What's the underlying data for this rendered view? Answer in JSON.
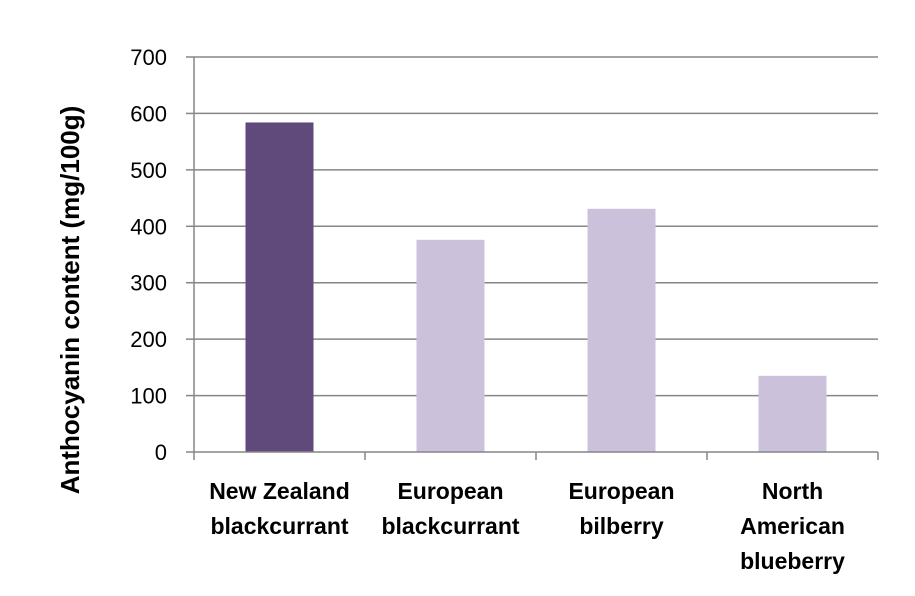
{
  "chart_data": {
    "type": "bar",
    "title": "",
    "xlabel": "",
    "ylabel": "Anthocyanin content (mg/100g)",
    "ylim": [
      0,
      700
    ],
    "yticks": [
      0,
      100,
      200,
      300,
      400,
      500,
      600,
      700
    ],
    "grid": true,
    "legend": "none",
    "categories": [
      [
        "New Zealand",
        "blackcurrant"
      ],
      [
        "European",
        "blackcurrant"
      ],
      [
        "European",
        "bilberry"
      ],
      [
        "North",
        "American",
        "blueberry"
      ]
    ],
    "values": [
      584,
      376,
      431,
      135
    ],
    "colors": [
      "#604a7b",
      "#ccc1da",
      "#ccc1da",
      "#ccc1da"
    ],
    "gridColor": "#868686"
  }
}
